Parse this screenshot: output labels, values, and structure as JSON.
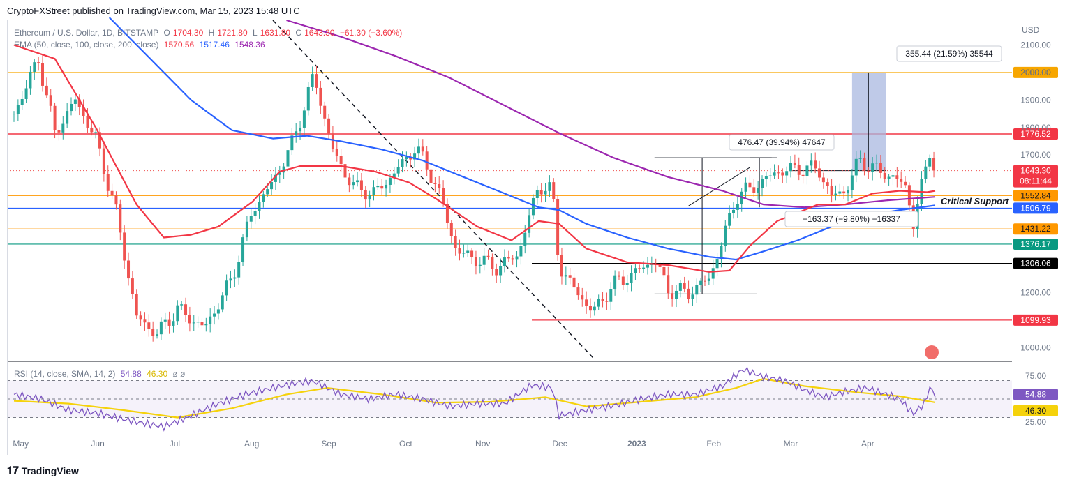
{
  "header": {
    "credit": "CryptoFXStreet published on TradingView.com, Mar 15, 2023 15:48 UTC"
  },
  "legend": {
    "symbol": "Ethereum / U.S. Dollar, 1D, BITSTAMP",
    "o_label": "O",
    "o_value": "1704.30",
    "h_label": "H",
    "h_value": "1721.80",
    "l_label": "L",
    "l_value": "1631.80",
    "c_label": "C",
    "c_value": "1643.30",
    "change": "−61.30 (−3.60%)",
    "ema_label": "EMA (50, close, 100, close, 200, close)",
    "ema50": "1570.56",
    "ema100": "1517.46",
    "ema200": "1548.36"
  },
  "rsi_legend": {
    "label": "RSI (14, close, SMA, 14, 2)",
    "rsi": "54.88",
    "sma": "46.30",
    "extra": "ø ø"
  },
  "footer": {
    "brand": "TradingView"
  },
  "colors": {
    "up": "#26a69a",
    "down": "#ef5350",
    "ema50": "#f23645",
    "ema100": "#2962ff",
    "ema200": "#9c27b0",
    "level_2000": "#f7a600",
    "level_1776": "#f23645",
    "level_1552": "#ff9800",
    "level_1506": "#2962ff",
    "level_1431": "#ff9800",
    "level_1376": "#089981",
    "level_1306": "#000000",
    "level_1099": "#f23645",
    "projection_box": "#a9b8e0",
    "rsi": "#7e57c2",
    "rsi_sma": "#f5d20b"
  },
  "chart_data": {
    "type": "candlestick",
    "y_axis": {
      "label": "USD",
      "ticks": [
        "2100.00",
        "2000.00",
        "1900.00",
        "1800.00",
        "1700.00",
        "1200.00",
        "1000.00"
      ],
      "range": [
        950,
        2190
      ]
    },
    "x_axis": {
      "ticks": [
        "May",
        "Jun",
        "Jul",
        "Aug",
        "Sep",
        "Oct",
        "Nov",
        "Dec",
        "2023",
        "Feb",
        "Mar",
        "Apr"
      ]
    },
    "price_levels": [
      {
        "value": 2000.0,
        "label": "2000.00",
        "color_key": "level_2000"
      },
      {
        "value": 1776.52,
        "label": "1776.52",
        "color_key": "level_1776"
      },
      {
        "value": 1552.84,
        "label": "1552.84",
        "color_key": "level_1552"
      },
      {
        "value": 1506.79,
        "label": "1506.79",
        "color_key": "level_1506"
      },
      {
        "value": 1431.22,
        "label": "1431.22",
        "color_key": "level_1431"
      },
      {
        "value": 1376.17,
        "label": "1376.17",
        "color_key": "level_1376"
      },
      {
        "value": 1306.06,
        "label": "1306.06",
        "color_key": "level_1306"
      },
      {
        "value": 1099.93,
        "label": "1099.93",
        "color_key": "level_1099"
      }
    ],
    "current_price": {
      "value": 1643.3,
      "label": "1643.30",
      "countdown": "08:11:44"
    },
    "annotations": [
      {
        "text": "355.44 (21.59%) 35544"
      },
      {
        "text": "476.47 (39.94%) 47647"
      },
      {
        "text": "−163.37 (−9.80%) −16337"
      },
      {
        "text": "Critical Support"
      }
    ],
    "price_path": [
      [
        0,
        1850
      ],
      [
        18,
        2050
      ],
      [
        30,
        1780
      ],
      [
        45,
        1900
      ],
      [
        60,
        1760
      ],
      [
        75,
        1490
      ],
      [
        90,
        1110
      ],
      [
        105,
        1050
      ],
      [
        120,
        1140
      ],
      [
        140,
        1070
      ],
      [
        160,
        1250
      ],
      [
        175,
        1500
      ],
      [
        190,
        1600
      ],
      [
        205,
        1750
      ],
      [
        220,
        1990
      ],
      [
        235,
        1700
      ],
      [
        250,
        1580
      ],
      [
        265,
        1560
      ],
      [
        280,
        1640
      ],
      [
        295,
        1730
      ],
      [
        310,
        1590
      ],
      [
        325,
        1350
      ],
      [
        340,
        1320
      ],
      [
        355,
        1290
      ],
      [
        370,
        1340
      ],
      [
        385,
        1590
      ],
      [
        395,
        1570
      ],
      [
        400,
        1300
      ],
      [
        410,
        1220
      ],
      [
        425,
        1130
      ],
      [
        440,
        1230
      ],
      [
        455,
        1270
      ],
      [
        470,
        1320
      ],
      [
        480,
        1210
      ],
      [
        495,
        1200
      ],
      [
        510,
        1250
      ],
      [
        520,
        1390
      ],
      [
        530,
        1550
      ],
      [
        545,
        1590
      ],
      [
        560,
        1640
      ],
      [
        575,
        1650
      ],
      [
        590,
        1650
      ],
      [
        600,
        1550
      ],
      [
        610,
        1570
      ],
      [
        620,
        1680
      ],
      [
        635,
        1640
      ],
      [
        645,
        1620
      ],
      [
        655,
        1580
      ],
      [
        660,
        1450
      ],
      [
        665,
        1560
      ],
      [
        672,
        1720
      ],
      [
        676,
        1643
      ]
    ],
    "ema50": [
      [
        0,
        2100
      ],
      [
        30,
        2050
      ],
      [
        60,
        1800
      ],
      [
        90,
        1520
      ],
      [
        110,
        1400
      ],
      [
        130,
        1410
      ],
      [
        150,
        1440
      ],
      [
        175,
        1530
      ],
      [
        195,
        1640
      ],
      [
        210,
        1660
      ],
      [
        240,
        1660
      ],
      [
        265,
        1640
      ],
      [
        290,
        1600
      ],
      [
        310,
        1540
      ],
      [
        340,
        1440
      ],
      [
        365,
        1390
      ],
      [
        385,
        1460
      ],
      [
        400,
        1450
      ],
      [
        420,
        1360
      ],
      [
        450,
        1310
      ],
      [
        480,
        1300
      ],
      [
        510,
        1275
      ],
      [
        525,
        1280
      ],
      [
        540,
        1370
      ],
      [
        560,
        1460
      ],
      [
        590,
        1520
      ],
      [
        610,
        1520
      ],
      [
        630,
        1560
      ],
      [
        650,
        1570
      ],
      [
        670,
        1565
      ],
      [
        676,
        1570
      ]
    ],
    "ema100": [
      [
        70,
        2200
      ],
      [
        100,
        2050
      ],
      [
        130,
        1900
      ],
      [
        160,
        1790
      ],
      [
        190,
        1760
      ],
      [
        215,
        1770
      ],
      [
        240,
        1750
      ],
      [
        270,
        1720
      ],
      [
        300,
        1680
      ],
      [
        330,
        1620
      ],
      [
        360,
        1560
      ],
      [
        385,
        1510
      ],
      [
        400,
        1500
      ],
      [
        420,
        1450
      ],
      [
        450,
        1400
      ],
      [
        480,
        1360
      ],
      [
        510,
        1330
      ],
      [
        530,
        1320
      ],
      [
        550,
        1350
      ],
      [
        575,
        1390
      ],
      [
        600,
        1440
      ],
      [
        625,
        1480
      ],
      [
        650,
        1500
      ],
      [
        676,
        1517
      ]
    ],
    "ema200": [
      [
        200,
        2190
      ],
      [
        240,
        2130
      ],
      [
        280,
        2060
      ],
      [
        320,
        1980
      ],
      [
        360,
        1880
      ],
      [
        400,
        1780
      ],
      [
        440,
        1690
      ],
      [
        480,
        1620
      ],
      [
        520,
        1570
      ],
      [
        550,
        1520
      ],
      [
        580,
        1510
      ],
      [
        610,
        1520
      ],
      [
        640,
        1535
      ],
      [
        676,
        1548
      ]
    ],
    "rsi": {
      "range": [
        10,
        90
      ],
      "ticks": [
        "75.00",
        "25.00"
      ],
      "bands": [
        70,
        50,
        30
      ],
      "rsi_path": [
        [
          0,
          55
        ],
        [
          20,
          50
        ],
        [
          40,
          38
        ],
        [
          60,
          35
        ],
        [
          75,
          30
        ],
        [
          90,
          25
        ],
        [
          110,
          20
        ],
        [
          130,
          32
        ],
        [
          150,
          45
        ],
        [
          170,
          55
        ],
        [
          190,
          62
        ],
        [
          210,
          68
        ],
        [
          220,
          69
        ],
        [
          240,
          55
        ],
        [
          260,
          50
        ],
        [
          280,
          55
        ],
        [
          300,
          50
        ],
        [
          320,
          42
        ],
        [
          340,
          45
        ],
        [
          360,
          45
        ],
        [
          380,
          65
        ],
        [
          395,
          62
        ],
        [
          400,
          32
        ],
        [
          420,
          38
        ],
        [
          440,
          43
        ],
        [
          460,
          50
        ],
        [
          480,
          55
        ],
        [
          500,
          55
        ],
        [
          520,
          64
        ],
        [
          535,
          82
        ],
        [
          550,
          74
        ],
        [
          565,
          70
        ],
        [
          580,
          60
        ],
        [
          595,
          52
        ],
        [
          610,
          58
        ],
        [
          625,
          62
        ],
        [
          640,
          55
        ],
        [
          650,
          50
        ],
        [
          660,
          34
        ],
        [
          668,
          45
        ],
        [
          672,
          62
        ],
        [
          676,
          54.88
        ]
      ],
      "sma_path": [
        [
          0,
          48
        ],
        [
          40,
          45
        ],
        [
          80,
          38
        ],
        [
          120,
          30
        ],
        [
          160,
          40
        ],
        [
          200,
          55
        ],
        [
          230,
          62
        ],
        [
          270,
          55
        ],
        [
          310,
          46
        ],
        [
          350,
          47
        ],
        [
          390,
          52
        ],
        [
          420,
          42
        ],
        [
          460,
          47
        ],
        [
          500,
          52
        ],
        [
          530,
          62
        ],
        [
          550,
          72
        ],
        [
          580,
          64
        ],
        [
          620,
          57
        ],
        [
          650,
          53
        ],
        [
          676,
          46.3
        ]
      ]
    }
  }
}
